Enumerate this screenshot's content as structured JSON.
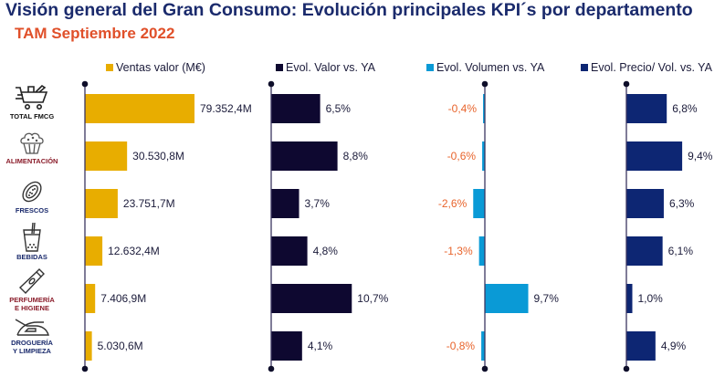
{
  "header": {
    "title": "Visión general del Gran Consumo: Evolución principales KPI´s por departamento",
    "subtitle": "TAM Septiembre 2022"
  },
  "colors": {
    "title": "#1a2a6c",
    "subtitle": "#e0502a",
    "ventas": "#e8ad00",
    "evol_valor": "#0e0830",
    "evol_volumen": "#0a9ad6",
    "evol_precio": "#0d2673",
    "negative_label": "#e8642c",
    "positive_label": "#1b1b3a",
    "axis": "#3b3560"
  },
  "categories": [
    {
      "label_lines": [
        "TOTAL FMCG"
      ],
      "icon": "shopping-cart-icon",
      "label_color": "#111111"
    },
    {
      "label_lines": [
        "ALIMENTACIÓN"
      ],
      "icon": "cupcake-icon",
      "label_color": "#8a1c2a"
    },
    {
      "label_lines": [
        "FRESCOS"
      ],
      "icon": "papaya-icon",
      "label_color": "#1a2a6c"
    },
    {
      "label_lines": [
        "BEBIDAS"
      ],
      "icon": "drink-cup-icon",
      "label_color": "#1a2a6c"
    },
    {
      "label_lines": [
        "PERFUMERÍA",
        "E HIGIENE"
      ],
      "icon": "cream-tube-icon",
      "label_color": "#8a1c2a"
    },
    {
      "label_lines": [
        "DROGUERÍA",
        "Y LIMPIEZA"
      ],
      "icon": "iron-icon",
      "label_color": "#1a2a6c"
    }
  ],
  "chart_data": {
    "type": "bar",
    "orientation": "horizontal",
    "title": "Visión general del Gran Consumo: Evolución principales KPI´s por departamento",
    "subtitle": "TAM Septiembre 2022",
    "categories": [
      "TOTAL FMCG",
      "ALIMENTACIÓN",
      "FRESCOS",
      "BEBIDAS",
      "PERFUMERÍA E HIGIENE",
      "DROGUERÍA Y LIMPIEZA"
    ],
    "series": [
      {
        "name": "Ventas valor (M€)",
        "values": [
          79352.4,
          30530.8,
          23751.7,
          12632.4,
          7406.9,
          5030.6
        ],
        "labels": [
          "79.352,4M",
          "30.530,8M",
          "23.751,7M",
          "12.632,4M",
          "7.406,9M",
          "5.030,6M"
        ]
      },
      {
        "name": "Evol. Valor vs. YA",
        "values": [
          6.5,
          8.8,
          3.7,
          4.8,
          10.7,
          4.1
        ],
        "labels": [
          "6,5%",
          "8,8%",
          "3,7%",
          "4,8%",
          "10,7%",
          "4,1%"
        ]
      },
      {
        "name": "Evol. Volumen vs. YA",
        "values": [
          -0.4,
          -0.6,
          -2.6,
          -1.3,
          9.7,
          -0.8
        ],
        "labels": [
          "-0,4%",
          "-0,6%",
          "-2,6%",
          "-1,3%",
          "9,7%",
          "-0,8%"
        ]
      },
      {
        "name": "Evol. Precio/ Vol. vs. YA",
        "values": [
          6.8,
          9.4,
          6.3,
          6.1,
          1.0,
          4.9
        ],
        "labels": [
          "6,8%",
          "9,4%",
          "6,3%",
          "6,1%",
          "1,0%",
          "4,9%"
        ]
      }
    ],
    "legend_position": "top",
    "grid": false,
    "xlabel": "",
    "ylabel": ""
  }
}
